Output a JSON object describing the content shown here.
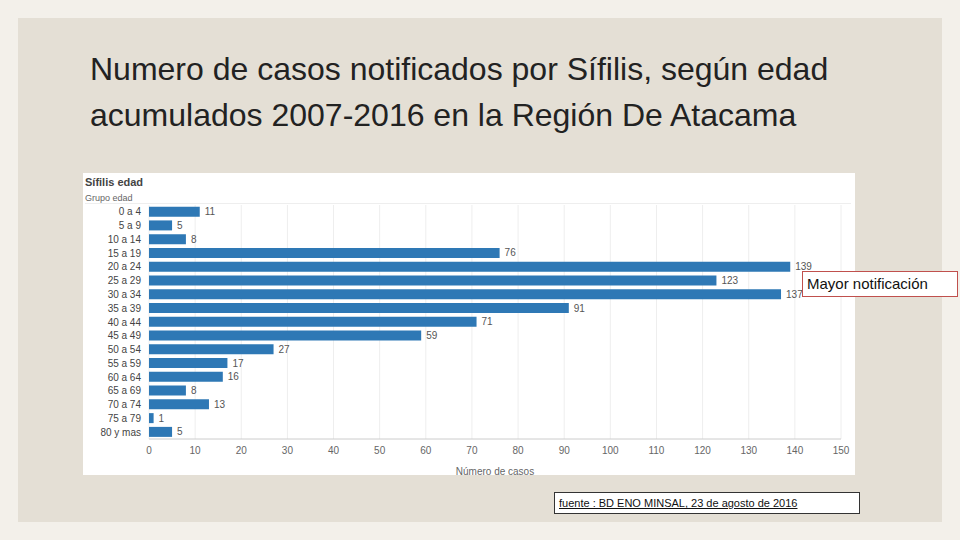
{
  "chart_data": {
    "type": "bar",
    "title": "Numero de casos  notificados por Sífilis, según edad acumulados 2007-2016 en la Región De Atacama",
    "subtitle": "Sífilis edad",
    "y_label": "Grupo edad",
    "x_label": "Número de casos",
    "annotations": [
      "Mayor notificación"
    ],
    "source": "fuente : BD ENO MINSAL, 23 de agosto de 2016",
    "categories": [
      "0 a 4",
      "5 a 9",
      "10 a 14",
      "15 a 19",
      "20 a 24",
      "25 a 29",
      "30 a 34",
      "35 a 39",
      "40 a 44",
      "45 a 49",
      "50 a 54",
      "55 a 59",
      "60 a 64",
      "65 a 69",
      "70 a 74",
      "75 a 79",
      "80 y mas"
    ],
    "values": [
      11,
      5,
      8,
      76,
      139,
      123,
      137,
      91,
      71,
      59,
      27,
      17,
      16,
      8,
      13,
      1,
      5
    ],
    "color": "#2e78b5",
    "orientation": "horizontal",
    "data_labels": true,
    "grid": true,
    "xlim": [
      0,
      150
    ],
    "xticks": [
      0,
      10,
      20,
      30,
      40,
      50,
      60,
      70,
      80,
      90,
      100,
      110,
      120,
      130,
      140,
      150
    ]
  }
}
